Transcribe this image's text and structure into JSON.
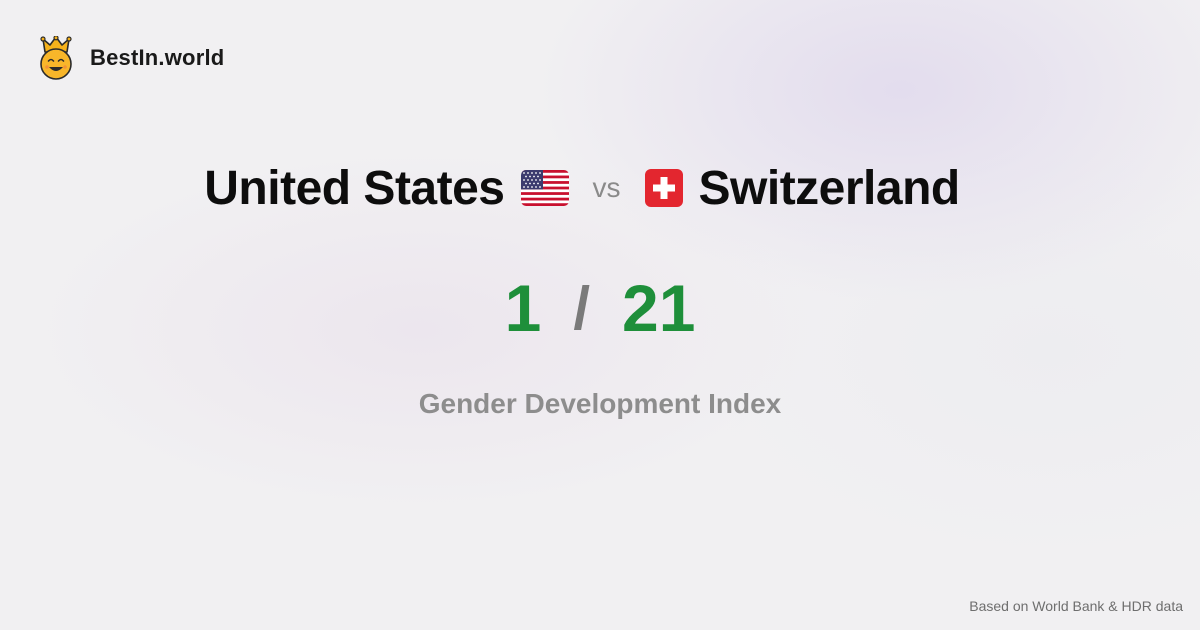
{
  "brand": {
    "name": "BestIn.world",
    "icon": "crown-smiley-icon"
  },
  "comparison": {
    "left_country": "United States",
    "left_flag_icon": "us-flag-icon",
    "vs_label": "vs",
    "right_country": "Switzerland",
    "right_flag_icon": "swiss-flag-icon"
  },
  "ranks": {
    "left": "1",
    "separator": "/",
    "right": "21",
    "color": "#1e8f3a"
  },
  "metric": {
    "label": "Gender Development Index"
  },
  "footer": {
    "source": "Based on World Bank & HDR data"
  }
}
